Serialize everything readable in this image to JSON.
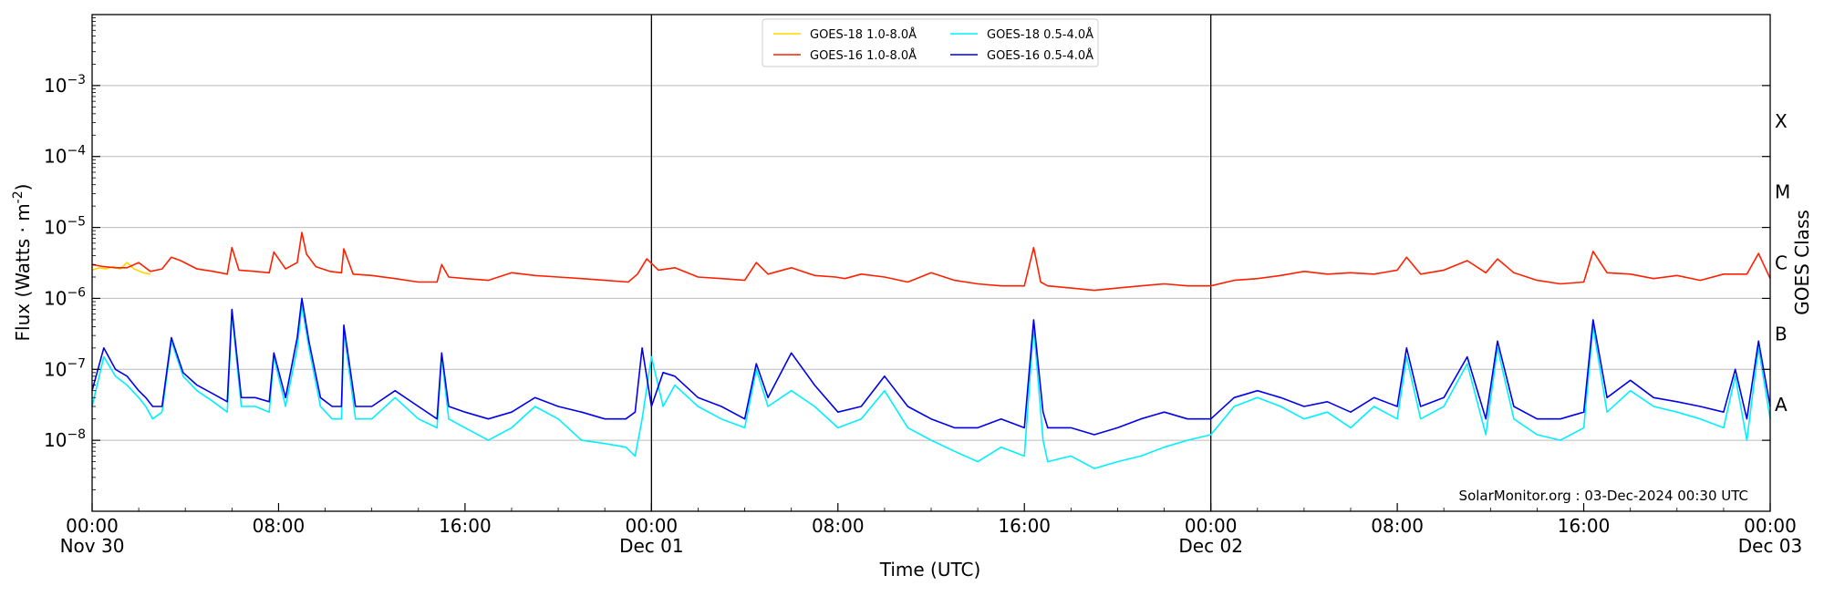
{
  "chart_data": {
    "type": "line",
    "title": "",
    "xlabel": "Time (UTC)",
    "ylabel": "Flux (Watts · m",
    "ylabel_exponent": "-2",
    "ylabel_close": ")",
    "right_label": "GOES Class",
    "yscale": "log",
    "ylim": [
      1e-09,
      0.01
    ],
    "y_ticks": [
      {
        "base": "10",
        "exp": "−3",
        "value": 0.001
      },
      {
        "base": "10",
        "exp": "−4",
        "value": 0.0001
      },
      {
        "base": "10",
        "exp": "−5",
        "value": 1e-05
      },
      {
        "base": "10",
        "exp": "−6",
        "value": 1e-06
      },
      {
        "base": "10",
        "exp": "−7",
        "value": 1e-07
      },
      {
        "base": "10",
        "exp": "−8",
        "value": 1e-08
      }
    ],
    "class_labels": [
      {
        "label": "X",
        "value": 0.0001
      },
      {
        "label": "M",
        "value": 1e-05
      },
      {
        "label": "C",
        "value": 1e-06
      },
      {
        "label": "B",
        "value": 1e-07
      },
      {
        "label": "A",
        "value": 1e-08
      }
    ],
    "xlim_hours": [
      0,
      72
    ],
    "x_ticks": [
      {
        "hour": 0,
        "label": "00:00",
        "date": "Nov 30"
      },
      {
        "hour": 8,
        "label": "08:00",
        "date": ""
      },
      {
        "hour": 16,
        "label": "16:00",
        "date": ""
      },
      {
        "hour": 24,
        "label": "00:00",
        "date": "Dec 01"
      },
      {
        "hour": 32,
        "label": "08:00",
        "date": ""
      },
      {
        "hour": 40,
        "label": "16:00",
        "date": ""
      },
      {
        "hour": 48,
        "label": "00:00",
        "date": "Dec 02"
      },
      {
        "hour": 56,
        "label": "08:00",
        "date": ""
      },
      {
        "hour": 64,
        "label": "16:00",
        "date": ""
      },
      {
        "hour": 72,
        "label": "00:00",
        "date": "Dec 03"
      }
    ],
    "day_boundaries_hours": [
      24,
      48
    ],
    "grid": "horizontal",
    "legend_position": "top-center",
    "annotation": "SolarMonitor.org : 03-Dec-2024 00:30 UTC",
    "series": [
      {
        "name": "GOES-18 1.0-8.0Å",
        "color": "#ffd700",
        "x_hours": [
          0.0,
          0.3,
          0.6,
          0.9,
          1.2,
          1.5,
          1.8,
          2.2,
          2.5
        ],
        "y": [
          2.5e-06,
          2.7e-06,
          2.6e-06,
          2.8e-06,
          2.6e-06,
          3.2e-06,
          2.6e-06,
          2.3e-06,
          2.2e-06
        ]
      },
      {
        "name": "GOES-16 1.0-8.0Å",
        "color": "#ff2000",
        "x_hours": [
          0,
          0.5,
          1,
          1.5,
          2,
          2.5,
          3.0,
          3.4,
          3.8,
          4.5,
          5.2,
          5.8,
          6.0,
          6.3,
          7.0,
          7.6,
          7.8,
          8.3,
          8.8,
          9.0,
          9.2,
          9.6,
          10.2,
          10.7,
          10.8,
          11.2,
          12.0,
          13.0,
          14.0,
          14.8,
          15.0,
          15.3,
          16.0,
          17.0,
          18.0,
          19.0,
          20.0,
          21.0,
          22.0,
          23.0,
          23.4,
          23.8,
          24.3,
          25.0,
          26.0,
          27.0,
          28.0,
          28.5,
          29.0,
          30.0,
          31.0,
          31.9,
          32.3,
          33.0,
          34.0,
          35.0,
          36.0,
          37.0,
          38.0,
          39.0,
          40.0,
          40.4,
          40.7,
          41.0,
          42.0,
          43.0,
          44.0,
          45.0,
          46.0,
          47.0,
          48.0,
          49.0,
          50.0,
          51.0,
          52.0,
          53.0,
          54.0,
          55.0,
          56.0,
          56.4,
          57.0,
          58.0,
          59.0,
          59.8,
          60.3,
          61.0,
          62.0,
          63.0,
          64.0,
          64.4,
          65.0,
          66.0,
          67.0,
          68.0,
          69.0,
          70.0,
          71.0,
          71.5,
          72.0
        ],
        "y": [
          3e-06,
          2.8e-06,
          2.7e-06,
          2.7e-06,
          3.2e-06,
          2.4e-06,
          2.6e-06,
          3.8e-06,
          3.4e-06,
          2.6e-06,
          2.4e-06,
          2.2e-06,
          5.2e-06,
          2.5e-06,
          2.4e-06,
          2.3e-06,
          4.5e-06,
          2.6e-06,
          3.2e-06,
          8.5e-06,
          4.2e-06,
          2.8e-06,
          2.4e-06,
          2.3e-06,
          5e-06,
          2.2e-06,
          2.1e-06,
          1.9e-06,
          1.7e-06,
          1.7e-06,
          3e-06,
          2e-06,
          1.9e-06,
          1.8e-06,
          2.3e-06,
          2.1e-06,
          2e-06,
          1.9e-06,
          1.8e-06,
          1.7e-06,
          2.2e-06,
          3.6e-06,
          2.5e-06,
          2.7e-06,
          2e-06,
          1.9e-06,
          1.8e-06,
          3.2e-06,
          2.2e-06,
          2.7e-06,
          2.1e-06,
          2e-06,
          1.9e-06,
          2.2e-06,
          2e-06,
          1.7e-06,
          2.3e-06,
          1.8e-06,
          1.6e-06,
          1.5e-06,
          1.5e-06,
          5.2e-06,
          1.7e-06,
          1.5e-06,
          1.4e-06,
          1.3e-06,
          1.4e-06,
          1.5e-06,
          1.6e-06,
          1.5e-06,
          1.5e-06,
          1.8e-06,
          1.9e-06,
          2.1e-06,
          2.4e-06,
          2.2e-06,
          2.3e-06,
          2.2e-06,
          2.5e-06,
          3.8e-06,
          2.2e-06,
          2.5e-06,
          3.4e-06,
          2.3e-06,
          3.6e-06,
          2.3e-06,
          1.8e-06,
          1.6e-06,
          1.7e-06,
          4.6e-06,
          2.3e-06,
          2.2e-06,
          1.9e-06,
          2.1e-06,
          1.8e-06,
          2.2e-06,
          2.2e-06,
          4.3e-06,
          1.9e-06
        ]
      },
      {
        "name": "GOES-18 0.5-4.0Å",
        "color": "#00f0ff",
        "x_hours": [
          0.0,
          0.5,
          1.0,
          1.5,
          2.0,
          2.3,
          2.6,
          3.0,
          3.4,
          3.9,
          4.5,
          5.2,
          5.8,
          6.0,
          6.4,
          7.0,
          7.6,
          7.8,
          8.3,
          8.8,
          9.0,
          9.3,
          9.8,
          10.3,
          10.7,
          10.8,
          11.3,
          12.0,
          13.0,
          14.0,
          14.8,
          15.0,
          15.3,
          16.0,
          17.0,
          18.0,
          19.0,
          20.0,
          21.0,
          22.0,
          22.9,
          23.3,
          23.6,
          24.0,
          24.5,
          25.0,
          26.0,
          27.0,
          28.0,
          28.5,
          29.0,
          30.0,
          31.0,
          32.0,
          33.0,
          34.0,
          35.0,
          36.0,
          37.0,
          38.0,
          39.0,
          40.0,
          40.4,
          40.8,
          41.0,
          42.0,
          43.0,
          44.0,
          45.0,
          46.0,
          47.0,
          48.0,
          49.0,
          50.0,
          51.0,
          52.0,
          53.0,
          54.0,
          55.0,
          56.0,
          56.4,
          57.0,
          58.0,
          59.0,
          59.8,
          60.3,
          61.0,
          62.0,
          63.0,
          64.0,
          64.4,
          65.0,
          66.0,
          67.0,
          68.0,
          69.0,
          70.0,
          70.5,
          71.0,
          71.5,
          72.0
        ],
        "y": [
          3e-08,
          1.5e-07,
          8e-08,
          6e-08,
          4e-08,
          3e-08,
          2e-08,
          2.5e-08,
          2.5e-07,
          8e-08,
          5e-08,
          3.5e-08,
          2.5e-08,
          6e-07,
          3e-08,
          3e-08,
          2.5e-08,
          1.5e-07,
          3e-08,
          2e-07,
          8e-07,
          2e-07,
          3e-08,
          2e-08,
          2e-08,
          3.5e-07,
          2e-08,
          2e-08,
          4e-08,
          2e-08,
          1.5e-08,
          1.5e-07,
          2e-08,
          1.5e-08,
          1e-08,
          1.5e-08,
          3e-08,
          2e-08,
          1e-08,
          9e-09,
          8e-09,
          6e-09,
          2e-08,
          1.5e-07,
          3e-08,
          6e-08,
          3e-08,
          2e-08,
          1.5e-08,
          1e-07,
          3e-08,
          5e-08,
          3e-08,
          1.5e-08,
          2e-08,
          5e-08,
          1.5e-08,
          1e-08,
          7e-09,
          5e-09,
          8e-09,
          6e-09,
          4e-07,
          1e-08,
          5e-09,
          6e-09,
          4e-09,
          5e-09,
          6e-09,
          8e-09,
          1e-08,
          1.2e-08,
          3e-08,
          4e-08,
          3e-08,
          2e-08,
          2.5e-08,
          1.5e-08,
          3e-08,
          2e-08,
          1.5e-07,
          2e-08,
          3e-08,
          1.2e-07,
          1.2e-08,
          2e-07,
          2e-08,
          1.2e-08,
          1e-08,
          1.5e-08,
          4e-07,
          2.5e-08,
          5e-08,
          3e-08,
          2.5e-08,
          2e-08,
          1.5e-08,
          8e-08,
          1e-08,
          2e-07,
          2e-08
        ]
      },
      {
        "name": "GOES-16 0.5-4.0Å",
        "color": "#0000ee",
        "x_hours": [
          0.0,
          0.5,
          1.0,
          1.5,
          2.0,
          2.3,
          2.6,
          3.0,
          3.4,
          3.9,
          4.5,
          5.2,
          5.8,
          6.0,
          6.4,
          7.0,
          7.6,
          7.8,
          8.3,
          8.8,
          9.0,
          9.3,
          9.8,
          10.3,
          10.7,
          10.8,
          11.3,
          12.0,
          13.0,
          14.0,
          14.8,
          15.0,
          15.3,
          16.0,
          17.0,
          18.0,
          19.0,
          20.0,
          21.0,
          22.0,
          22.9,
          23.3,
          23.6,
          24.0,
          24.5,
          25.0,
          26.0,
          27.0,
          28.0,
          28.5,
          29.0,
          30.0,
          31.0,
          32.0,
          33.0,
          34.0,
          35.0,
          36.0,
          37.0,
          38.0,
          39.0,
          40.0,
          40.4,
          40.8,
          41.0,
          42.0,
          43.0,
          44.0,
          45.0,
          46.0,
          47.0,
          48.0,
          49.0,
          50.0,
          51.0,
          52.0,
          53.0,
          54.0,
          55.0,
          56.0,
          56.4,
          57.0,
          58.0,
          59.0,
          59.8,
          60.3,
          61.0,
          62.0,
          63.0,
          64.0,
          64.4,
          65.0,
          66.0,
          67.0,
          68.0,
          69.0,
          70.0,
          70.5,
          71.0,
          71.5,
          72.0
        ],
        "y": [
          5e-08,
          2e-07,
          1e-07,
          8e-08,
          5e-08,
          4e-08,
          3e-08,
          3e-08,
          2.8e-07,
          9e-08,
          6e-08,
          4.5e-08,
          3.5e-08,
          7e-07,
          4e-08,
          4e-08,
          3.5e-08,
          1.7e-07,
          4e-08,
          2.8e-07,
          1e-06,
          2.5e-07,
          4e-08,
          3e-08,
          3e-08,
          4.2e-07,
          3e-08,
          3e-08,
          5e-08,
          3e-08,
          2e-08,
          1.7e-07,
          3e-08,
          2.5e-08,
          2e-08,
          2.5e-08,
          4e-08,
          3e-08,
          2.5e-08,
          2e-08,
          2e-08,
          2.5e-08,
          2e-07,
          3e-08,
          9e-08,
          8e-08,
          4e-08,
          3e-08,
          2e-08,
          1.2e-07,
          4e-08,
          1.7e-07,
          6e-08,
          2.5e-08,
          3e-08,
          8e-08,
          3e-08,
          2e-08,
          1.5e-08,
          1.5e-08,
          2e-08,
          1.5e-08,
          5e-07,
          2.5e-08,
          1.5e-08,
          1.5e-08,
          1.2e-08,
          1.5e-08,
          2e-08,
          2.5e-08,
          2e-08,
          2e-08,
          4e-08,
          5e-08,
          4e-08,
          3e-08,
          3.5e-08,
          2.5e-08,
          4e-08,
          3e-08,
          2e-07,
          3e-08,
          4e-08,
          1.5e-07,
          2e-08,
          2.5e-07,
          3e-08,
          2e-08,
          2e-08,
          2.5e-08,
          5e-07,
          4e-08,
          7e-08,
          4e-08,
          3.5e-08,
          3e-08,
          2.5e-08,
          1e-07,
          2e-08,
          2.5e-07,
          3e-08
        ]
      }
    ]
  }
}
